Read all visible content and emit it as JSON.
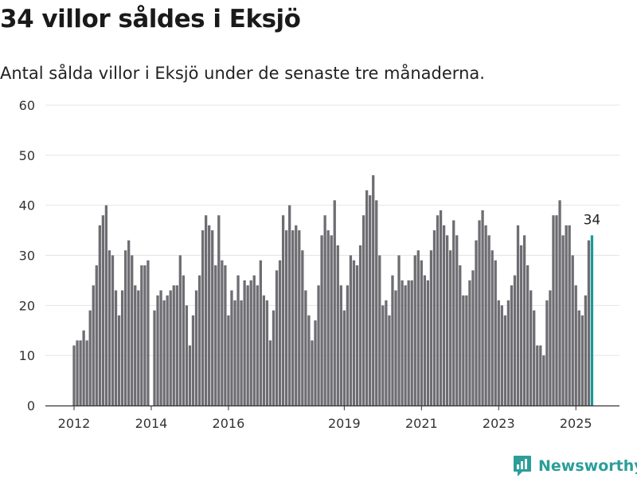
{
  "title": "34 villor såldes i Eksjö",
  "subtitle": "Antal sålda villor i Eksjö under de senaste tre månaderna.",
  "brand": {
    "name": "Newsworthy",
    "icon": "newsworthy-logo-icon",
    "color": "#2b9e99"
  },
  "colors": {
    "bar": "#6e6d72",
    "highlight": "#1b9b95",
    "grid": "#e4e4e4"
  },
  "chart_data": {
    "type": "bar",
    "x_start": "2012-01",
    "frequency": "monthly",
    "xticks": [
      "2012",
      "2014",
      "2016",
      "2019",
      "2021",
      "2023",
      "2025"
    ],
    "yticks": [
      0,
      10,
      20,
      30,
      40,
      50,
      60
    ],
    "ylim": [
      0,
      60
    ],
    "grid": true,
    "highlight_last": true,
    "last_value_label": "34",
    "values": [
      12,
      13,
      13,
      15,
      13,
      19,
      24,
      28,
      36,
      38,
      40,
      31,
      30,
      23,
      18,
      23,
      31,
      33,
      30,
      24,
      23,
      28,
      28,
      29,
      null,
      19,
      22,
      23,
      21,
      22,
      23,
      24,
      24,
      30,
      26,
      20,
      12,
      18,
      23,
      26,
      35,
      38,
      36,
      35,
      28,
      38,
      29,
      28,
      18,
      23,
      21,
      26,
      21,
      25,
      24,
      25,
      26,
      24,
      29,
      22,
      21,
      13,
      19,
      27,
      29,
      38,
      35,
      40,
      35,
      36,
      35,
      31,
      23,
      18,
      13,
      17,
      24,
      34,
      38,
      35,
      34,
      41,
      32,
      24,
      19,
      24,
      30,
      29,
      28,
      32,
      38,
      43,
      42,
      46,
      41,
      30,
      20,
      21,
      18,
      26,
      23,
      30,
      25,
      24,
      25,
      25,
      30,
      31,
      29,
      26,
      25,
      31,
      35,
      38,
      39,
      36,
      34,
      31,
      37,
      34,
      28,
      22,
      22,
      25,
      27,
      33,
      37,
      39,
      36,
      34,
      31,
      29,
      21,
      20,
      18,
      21,
      24,
      26,
      36,
      32,
      34,
      28,
      23,
      19,
      12,
      12,
      10,
      21,
      23,
      38,
      38,
      41,
      34,
      36,
      36,
      30,
      24,
      19,
      18,
      22,
      33,
      34
    ]
  }
}
